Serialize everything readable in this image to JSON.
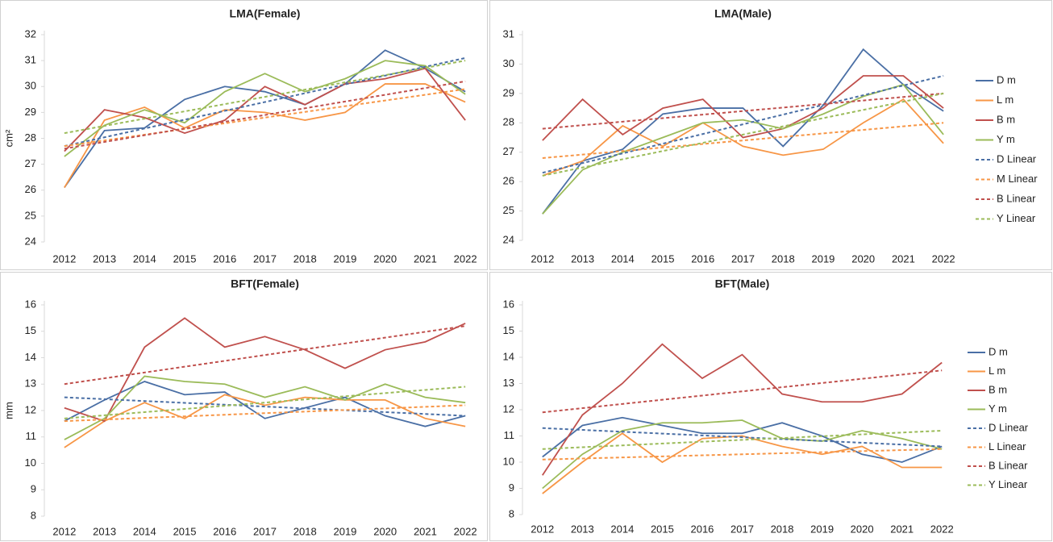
{
  "chart_data": [
    {
      "type": "line",
      "title": "LMA(Female)",
      "y_label": "cm²",
      "categories": [
        "2012",
        "2013",
        "2014",
        "2015",
        "2016",
        "2017",
        "2018",
        "2019",
        "2020",
        "2021",
        "2022"
      ],
      "ylim": [
        24,
        32
      ],
      "yticks": [
        24,
        25,
        26,
        27,
        28,
        29,
        30,
        31,
        32
      ],
      "series": [
        {
          "color": "#4a6fa5",
          "values": [
            26.1,
            28.3,
            28.4,
            29.5,
            30.0,
            29.8,
            29.3,
            30.1,
            31.4,
            30.7,
            29.8
          ]
        },
        {
          "color": "#f79646",
          "values": [
            26.1,
            28.7,
            29.2,
            28.4,
            29.1,
            29.0,
            28.7,
            29.0,
            30.1,
            30.1,
            29.4
          ]
        },
        {
          "color": "#c0504d",
          "values": [
            27.5,
            29.1,
            28.8,
            28.2,
            28.7,
            30.0,
            29.3,
            30.1,
            30.3,
            30.7,
            28.7
          ]
        },
        {
          "color": "#9bbb59",
          "values": [
            27.3,
            28.5,
            29.1,
            28.6,
            29.8,
            30.5,
            29.8,
            30.3,
            31.0,
            30.8,
            29.7
          ]
        },
        {
          "color": "#4a6fa5",
          "dashed": true,
          "values": [
            27.7,
            28.04,
            28.38,
            28.72,
            29.06,
            29.4,
            29.74,
            30.08,
            30.42,
            30.76,
            31.1
          ]
        },
        {
          "color": "#f79646",
          "dashed": true,
          "values": [
            27.7,
            27.92,
            28.14,
            28.36,
            28.58,
            28.8,
            29.02,
            29.24,
            29.46,
            29.68,
            29.9
          ]
        },
        {
          "color": "#c0504d",
          "dashed": true,
          "values": [
            27.6,
            27.86,
            28.12,
            28.38,
            28.64,
            28.9,
            29.16,
            29.42,
            29.68,
            29.94,
            30.2
          ]
        },
        {
          "color": "#9bbb59",
          "dashed": true,
          "values": [
            28.2,
            28.48,
            28.76,
            29.04,
            29.32,
            29.6,
            29.88,
            30.16,
            30.44,
            30.72,
            31.0
          ]
        }
      ]
    },
    {
      "type": "line",
      "title": "LMA(Male)",
      "legend": "right",
      "categories": [
        "2012",
        "2013",
        "2014",
        "2015",
        "2016",
        "2017",
        "2018",
        "2019",
        "2020",
        "2021",
        "2022"
      ],
      "ylim": [
        24,
        31
      ],
      "yticks": [
        24,
        25,
        26,
        27,
        28,
        29,
        30,
        31
      ],
      "series": [
        {
          "name": "D m",
          "color": "#4a6fa5",
          "values": [
            24.9,
            26.7,
            27.1,
            28.3,
            28.5,
            28.5,
            27.2,
            28.6,
            30.5,
            29.3,
            28.4
          ]
        },
        {
          "name": "L m",
          "color": "#f79646",
          "values": [
            26.2,
            26.7,
            27.9,
            27.2,
            28.0,
            27.2,
            26.9,
            27.1,
            28.0,
            28.8,
            27.3
          ]
        },
        {
          "name": "B m",
          "color": "#c0504d",
          "values": [
            27.4,
            28.8,
            27.6,
            28.5,
            28.8,
            27.5,
            27.8,
            28.5,
            29.6,
            29.6,
            28.5
          ]
        },
        {
          "name": "Y m",
          "color": "#9bbb59",
          "values": [
            24.9,
            26.4,
            27.0,
            27.5,
            28.0,
            28.1,
            27.8,
            28.3,
            28.9,
            29.3,
            27.6
          ]
        },
        {
          "name": "D Linear",
          "color": "#4a6fa5",
          "dashed": true,
          "values": [
            26.3,
            26.63,
            26.96,
            27.29,
            27.62,
            27.95,
            28.28,
            28.61,
            28.94,
            29.27,
            29.6
          ]
        },
        {
          "name": "M Linear",
          "color": "#f79646",
          "dashed": true,
          "values": [
            26.8,
            26.92,
            27.04,
            27.16,
            27.28,
            27.4,
            27.52,
            27.64,
            27.76,
            27.88,
            28.0
          ]
        },
        {
          "name": "B Linear",
          "color": "#c0504d",
          "dashed": true,
          "values": [
            27.8,
            27.92,
            28.04,
            28.16,
            28.28,
            28.4,
            28.52,
            28.64,
            28.76,
            28.88,
            29.0
          ]
        },
        {
          "name": "Y Linear",
          "color": "#9bbb59",
          "dashed": true,
          "values": [
            26.2,
            26.48,
            26.76,
            27.04,
            27.32,
            27.6,
            27.88,
            28.16,
            28.44,
            28.72,
            29.0
          ]
        }
      ]
    },
    {
      "type": "line",
      "title": "BFT(Female)",
      "y_label": "mm",
      "categories": [
        "2012",
        "2013",
        "2014",
        "2015",
        "2016",
        "2017",
        "2018",
        "2019",
        "2020",
        "2021",
        "2022"
      ],
      "ylim": [
        8,
        16
      ],
      "yticks": [
        8,
        9,
        10,
        11,
        12,
        13,
        14,
        15,
        16
      ],
      "series": [
        {
          "color": "#4a6fa5",
          "values": [
            11.6,
            12.4,
            13.1,
            12.6,
            12.7,
            11.7,
            12.1,
            12.5,
            11.8,
            11.4,
            11.8
          ]
        },
        {
          "color": "#f79646",
          "values": [
            10.6,
            11.6,
            12.3,
            11.7,
            12.6,
            12.2,
            12.5,
            12.4,
            12.4,
            11.7,
            11.4
          ]
        },
        {
          "color": "#c0504d",
          "values": [
            12.1,
            11.6,
            14.4,
            15.5,
            14.4,
            14.8,
            14.3,
            13.6,
            14.3,
            14.6,
            15.3
          ]
        },
        {
          "color": "#9bbb59",
          "values": [
            10.9,
            11.7,
            13.3,
            13.1,
            13.0,
            12.5,
            12.9,
            12.4,
            13.0,
            12.5,
            12.3
          ]
        },
        {
          "color": "#4a6fa5",
          "dashed": true,
          "values": [
            12.5,
            12.43,
            12.36,
            12.29,
            12.22,
            12.15,
            12.08,
            12.01,
            11.94,
            11.87,
            11.8
          ]
        },
        {
          "color": "#f79646",
          "dashed": true,
          "values": [
            11.6,
            11.66,
            11.72,
            11.78,
            11.84,
            11.9,
            11.96,
            12.02,
            12.08,
            12.14,
            12.2
          ]
        },
        {
          "color": "#c0504d",
          "dashed": true,
          "values": [
            13.0,
            13.22,
            13.44,
            13.66,
            13.88,
            14.1,
            14.32,
            14.54,
            14.76,
            14.98,
            15.2
          ]
        },
        {
          "color": "#9bbb59",
          "dashed": true,
          "values": [
            11.7,
            11.82,
            11.94,
            12.06,
            12.18,
            12.3,
            12.42,
            12.54,
            12.66,
            12.78,
            12.9
          ]
        }
      ]
    },
    {
      "type": "line",
      "title": "BFT(Male)",
      "legend": "right",
      "categories": [
        "2012",
        "2013",
        "2014",
        "2015",
        "2016",
        "2017",
        "2018",
        "2019",
        "2020",
        "2021",
        "2022"
      ],
      "ylim": [
        8,
        16
      ],
      "yticks": [
        8,
        9,
        10,
        11,
        12,
        13,
        14,
        15,
        16
      ],
      "series": [
        {
          "name": "D m",
          "color": "#4a6fa5",
          "values": [
            10.2,
            11.4,
            11.7,
            11.4,
            11.1,
            11.1,
            11.5,
            11.0,
            10.3,
            10.0,
            10.6
          ]
        },
        {
          "name": "L m",
          "color": "#f79646",
          "values": [
            8.8,
            10.0,
            11.1,
            10.0,
            10.9,
            11.0,
            10.6,
            10.3,
            10.6,
            9.8,
            9.8
          ]
        },
        {
          "name": "B m",
          "color": "#c0504d",
          "values": [
            9.5,
            11.8,
            13.0,
            14.5,
            13.2,
            14.1,
            12.6,
            12.3,
            12.3,
            12.6,
            13.8
          ]
        },
        {
          "name": "Y m",
          "color": "#9bbb59",
          "values": [
            9.0,
            10.3,
            11.2,
            11.5,
            11.5,
            11.6,
            10.9,
            10.8,
            11.2,
            10.9,
            10.5
          ]
        },
        {
          "name": "D Linear",
          "color": "#4a6fa5",
          "dashed": true,
          "values": [
            11.3,
            11.23,
            11.16,
            11.09,
            11.02,
            10.95,
            10.88,
            10.81,
            10.74,
            10.67,
            10.6
          ]
        },
        {
          "name": "L Linear",
          "color": "#f79646",
          "dashed": true,
          "values": [
            10.1,
            10.14,
            10.18,
            10.22,
            10.26,
            10.3,
            10.34,
            10.38,
            10.42,
            10.46,
            10.5
          ]
        },
        {
          "name": "B Linear",
          "color": "#c0504d",
          "dashed": true,
          "values": [
            11.9,
            12.06,
            12.22,
            12.38,
            12.54,
            12.7,
            12.86,
            13.02,
            13.18,
            13.34,
            13.5
          ]
        },
        {
          "name": "Y Linear",
          "color": "#9bbb59",
          "dashed": true,
          "values": [
            10.5,
            10.57,
            10.64,
            10.71,
            10.78,
            10.85,
            10.92,
            10.99,
            11.06,
            11.13,
            11.2
          ]
        }
      ]
    }
  ]
}
